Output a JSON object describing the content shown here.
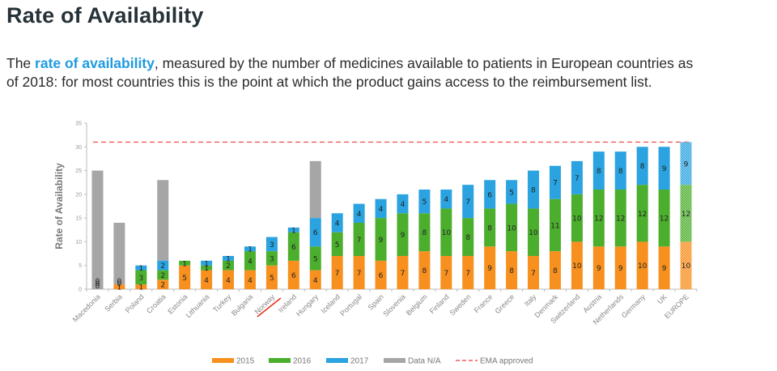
{
  "page": {
    "title": "Rate of Availability",
    "desc_prefix": "The ",
    "desc_highlight": "rate of availability",
    "desc_line1_rest": ", measured by the number of medicines available to patients in European countries as",
    "desc_line2": "of 2018: for most countries this is the point at which the product gains access to the reimbursement list."
  },
  "colors": {
    "title": "#263238",
    "highlight": "#1e9be0",
    "s2015": "#f7901e",
    "s2016": "#4cae2d",
    "s2017": "#2aa3e0",
    "na": "#a6a6a6",
    "ema": "#f05a5a"
  },
  "chart_data": {
    "type": "bar",
    "stacked": true,
    "title": "",
    "xlabel": "",
    "ylabel": "Rate of Availability",
    "ylim": [
      0,
      35
    ],
    "yticks": [
      0,
      5,
      10,
      15,
      20,
      25,
      30,
      35
    ],
    "grid": false,
    "legend_position": "bottom",
    "categories": [
      "Macedonia",
      "Serbia",
      "Poland",
      "Croatia",
      "Estonia",
      "Lithuania",
      "Turkey",
      "Bulgaria",
      "Norway",
      "Ireland",
      "Hungary",
      "Iceland",
      "Portugal",
      "Spain",
      "Slovenia",
      "Belgium",
      "Finland",
      "Sweden",
      "France",
      "Greece",
      "Italy",
      "Denmark",
      "Switzerland",
      "Austria",
      "Netherlands",
      "Germany",
      "UK",
      "EUROPE"
    ],
    "series": [
      {
        "name": "2015",
        "values": [
          0,
          1,
          1,
          2,
          5,
          4,
          4,
          4,
          5,
          6,
          4,
          7,
          7,
          6,
          7,
          8,
          7,
          7,
          9,
          8,
          7,
          8,
          10,
          9,
          9,
          10,
          9,
          10
        ]
      },
      {
        "name": "2016",
        "values": [
          0,
          0,
          3,
          2,
          1,
          1,
          2,
          4,
          3,
          6,
          5,
          5,
          7,
          9,
          9,
          8,
          10,
          8,
          8,
          10,
          10,
          11,
          10,
          12,
          12,
          12,
          12,
          12
        ]
      },
      {
        "name": "2017",
        "values": [
          0,
          0,
          1,
          2,
          0,
          1,
          1,
          1,
          3,
          1,
          6,
          4,
          4,
          4,
          4,
          5,
          4,
          7,
          6,
          5,
          8,
          7,
          7,
          8,
          8,
          8,
          9,
          9
        ]
      },
      {
        "name": "Data N/A",
        "totals": [
          25,
          14,
          null,
          23,
          null,
          null,
          null,
          null,
          null,
          null,
          27,
          null,
          null,
          null,
          null,
          null,
          null,
          null,
          null,
          null,
          null,
          null,
          null,
          null,
          null,
          null,
          null,
          null
        ]
      }
    ],
    "reference_line": {
      "name": "EMA approved",
      "value": 31,
      "style": "dashed"
    },
    "hatched_categories": [
      "EUROPE"
    ],
    "struck_categories": [
      "Norway"
    ],
    "legend": [
      "2015",
      "2016",
      "2017",
      "Data N/A",
      "EMA approved"
    ]
  }
}
